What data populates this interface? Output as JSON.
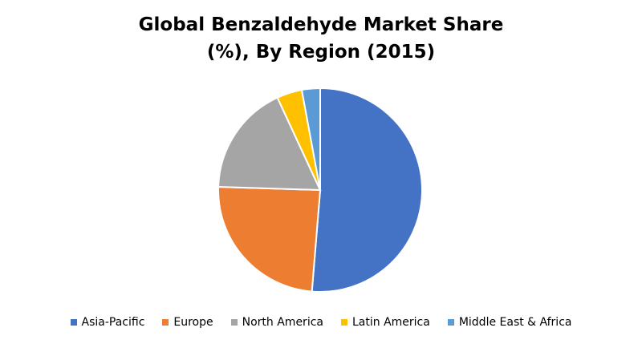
{
  "chart_data": {
    "type": "pie",
    "title": "Global Benzaldehyde Market Share (%), By Region (2015)",
    "categories": [
      "Asia-Pacific",
      "Europe",
      "North America",
      "Latin America",
      "Middle East & Africa"
    ],
    "values": [
      51.3,
      24.2,
      17.6,
      4.0,
      2.9
    ],
    "colors": [
      "#4472c4",
      "#ed7d31",
      "#a5a5a5",
      "#ffc000",
      "#5b9bd5"
    ],
    "legend": "bottom"
  }
}
